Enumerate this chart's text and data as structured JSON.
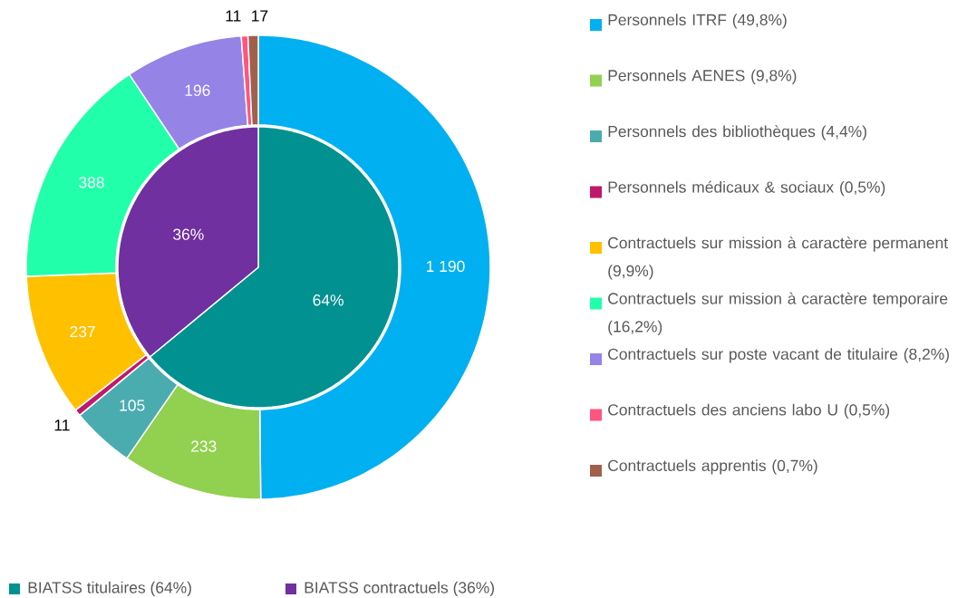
{
  "chart_data": [
    {
      "type": "donut",
      "categories": [
        "Personnels ITRF (49,8%)",
        "Personnels AENES (9,8%)",
        "Personnels des bibliothèques (4,4%)",
        "Personnels médicaux & sociaux (0,5%)",
        "Contractuels sur mission à caractère permanent (9,9%)",
        "Contractuels sur mission à caractère temporaire (16,2%)",
        "Contractuels sur poste vacant de titulaire (8,2%)",
        "Contractuels des anciens labo U (0,5%)",
        "Contractuels apprentis (0,7%)"
      ],
      "values": [
        1190,
        233,
        105,
        11,
        237,
        388,
        196,
        11,
        17
      ],
      "value_labels": [
        "1 190",
        "233",
        "105",
        "11",
        "237",
        "388",
        "196",
        "11",
        "17"
      ],
      "colors": [
        "#00b0f0",
        "#92d050",
        "#4bacb0",
        "#c0186b",
        "#ffc000",
        "#22ffaa",
        "#9583e6",
        "#ff5580",
        "#a0604c"
      ],
      "legend": "right"
    },
    {
      "type": "pie",
      "categories": [
        "BIATSS titulaires (64%)",
        "BIATSS contractuels (36%)"
      ],
      "values": [
        64,
        36
      ],
      "value_labels": [
        "64%",
        "36%"
      ],
      "colors": [
        "#009190",
        "#7030a0"
      ],
      "legend": "bottom"
    }
  ]
}
